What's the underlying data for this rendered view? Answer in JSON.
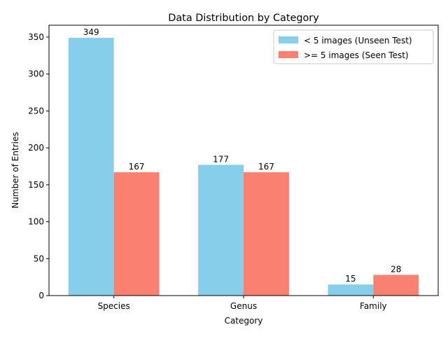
{
  "chart_data": {
    "type": "bar",
    "title": "Data Distribution by Category",
    "xlabel": "Category",
    "ylabel": "Number of Entries",
    "categories": [
      "Species",
      "Genus",
      "Family"
    ],
    "series": [
      {
        "name": "< 5 images (Unseen Test)",
        "color": "#87ceeb",
        "values": [
          349,
          177,
          15
        ]
      },
      {
        "name": ">= 5 images (Seen Test)",
        "color": "#fa8072",
        "values": [
          167,
          167,
          28
        ]
      }
    ],
    "ylim": [
      0,
      366.1
    ],
    "yticks": [
      0,
      50,
      100,
      150,
      200,
      250,
      300,
      350
    ],
    "grid": false,
    "legend_position": "upper-right",
    "data_labels": true
  }
}
